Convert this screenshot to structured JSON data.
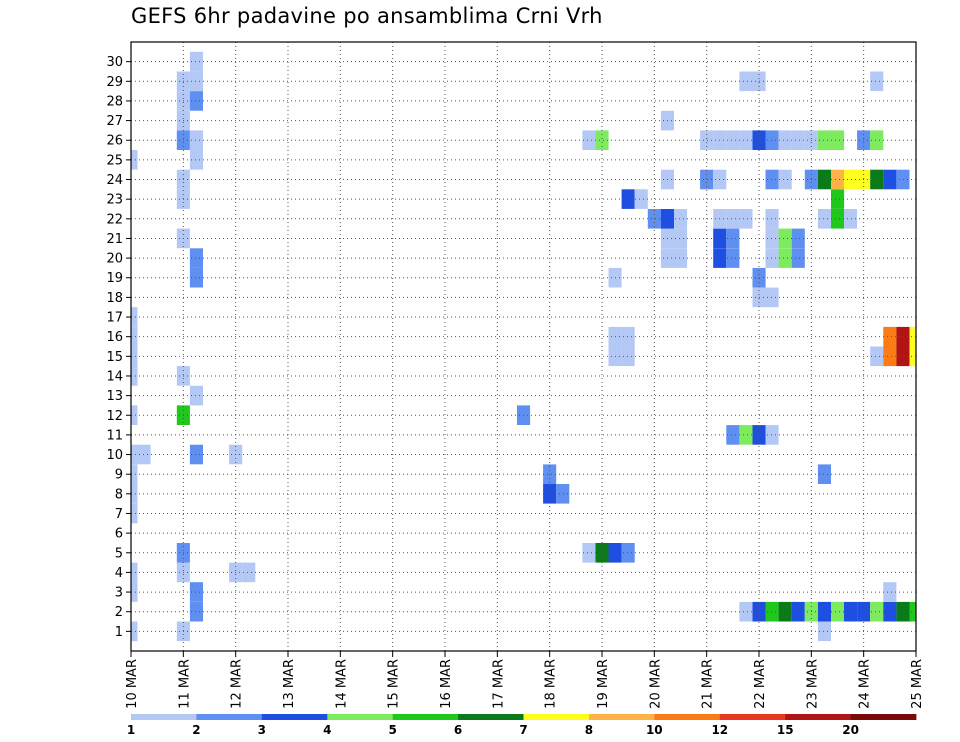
{
  "chart_data": {
    "type": "heatmap",
    "title": "GEFS 6hr padavine po ansamblima Crni Vrh",
    "x_tick_labels": [
      "10 MAR",
      "11 MAR",
      "12 MAR",
      "13 MAR",
      "14 MAR",
      "15 MAR",
      "16 MAR",
      "17 MAR",
      "18 MAR",
      "19 MAR",
      "20 MAR",
      "21 MAR",
      "22 MAR",
      "23 MAR",
      "24 MAR",
      "25 MAR"
    ],
    "x_range_days": [
      10,
      25
    ],
    "time_step_hours": 6,
    "y_tick_labels": [
      "1",
      "2",
      "3",
      "4",
      "5",
      "6",
      "7",
      "8",
      "9",
      "10",
      "11",
      "12",
      "13",
      "14",
      "15",
      "16",
      "17",
      "18",
      "19",
      "20",
      "21",
      "22",
      "23",
      "24",
      "25",
      "26",
      "27",
      "28",
      "29",
      "30"
    ],
    "y_range": [
      0,
      31
    ],
    "grid": true,
    "colorbar": {
      "labels": [
        "1",
        "2",
        "3",
        "4",
        "5",
        "6",
        "7",
        "8",
        "10",
        "12",
        "15",
        "20"
      ],
      "colors": [
        "#b3c8f5",
        "#5f8ff0",
        "#1f4fe0",
        "#7cec5e",
        "#1fc81a",
        "#0b7a18",
        "#ffff1f",
        "#ffb347",
        "#fb7c14",
        "#e8381f",
        "#b01414",
        "#7a0a0a"
      ]
    },
    "cells": [
      [
        1,
        10.0,
        1
      ],
      [
        1,
        11.0,
        1
      ],
      [
        1,
        23.25,
        1
      ],
      [
        2,
        11.25,
        2
      ],
      [
        2,
        21.75,
        1
      ],
      [
        2,
        22.0,
        3
      ],
      [
        2,
        22.25,
        5
      ],
      [
        2,
        22.5,
        6
      ],
      [
        2,
        22.75,
        3
      ],
      [
        2,
        23.0,
        4
      ],
      [
        2,
        23.25,
        3
      ],
      [
        2,
        23.5,
        4
      ],
      [
        2,
        23.75,
        3
      ],
      [
        2,
        24.0,
        3
      ],
      [
        2,
        24.25,
        4
      ],
      [
        2,
        24.5,
        3
      ],
      [
        2,
        24.75,
        6
      ],
      [
        2,
        25.0,
        5
      ],
      [
        3,
        10.0,
        1
      ],
      [
        3,
        11.25,
        2
      ],
      [
        3,
        24.5,
        1
      ],
      [
        4,
        10.0,
        1
      ],
      [
        4,
        11.0,
        1
      ],
      [
        4,
        12.0,
        1
      ],
      [
        4,
        12.25,
        1
      ],
      [
        5,
        11.0,
        2
      ],
      [
        5,
        18.75,
        1
      ],
      [
        5,
        19.0,
        6
      ],
      [
        5,
        19.25,
        3
      ],
      [
        5,
        19.5,
        2
      ],
      [
        7,
        10.0,
        1
      ],
      [
        8,
        10.0,
        1
      ],
      [
        8,
        18.0,
        3
      ],
      [
        8,
        18.25,
        2
      ],
      [
        9,
        10.0,
        1
      ],
      [
        9,
        18.0,
        2
      ],
      [
        9,
        23.25,
        2
      ],
      [
        10,
        10.0,
        1
      ],
      [
        10,
        10.25,
        1
      ],
      [
        10,
        11.25,
        2
      ],
      [
        10,
        12.0,
        1
      ],
      [
        11,
        21.5,
        2
      ],
      [
        11,
        21.75,
        4
      ],
      [
        11,
        22.0,
        3
      ],
      [
        11,
        22.25,
        1
      ],
      [
        12,
        10.0,
        1
      ],
      [
        12,
        11.0,
        5
      ],
      [
        12,
        17.5,
        2
      ],
      [
        13,
        11.25,
        1
      ],
      [
        14,
        10.0,
        1
      ],
      [
        14,
        11.0,
        1
      ],
      [
        15,
        10.0,
        1
      ],
      [
        15,
        19.25,
        1
      ],
      [
        15,
        19.5,
        1
      ],
      [
        15,
        24.25,
        1
      ],
      [
        15,
        24.5,
        9
      ],
      [
        15,
        24.75,
        11
      ],
      [
        15,
        25.0,
        7
      ],
      [
        16,
        10.0,
        1
      ],
      [
        16,
        19.25,
        1
      ],
      [
        16,
        19.5,
        1
      ],
      [
        16,
        24.5,
        9
      ],
      [
        16,
        24.75,
        11
      ],
      [
        16,
        25.0,
        7
      ],
      [
        17,
        10.0,
        1
      ],
      [
        18,
        22.0,
        1
      ],
      [
        18,
        22.25,
        1
      ],
      [
        19,
        11.25,
        2
      ],
      [
        19,
        19.25,
        1
      ],
      [
        19,
        22.0,
        2
      ],
      [
        20,
        11.25,
        2
      ],
      [
        20,
        20.25,
        1
      ],
      [
        20,
        20.5,
        1
      ],
      [
        20,
        21.25,
        3
      ],
      [
        20,
        21.5,
        2
      ],
      [
        20,
        22.25,
        1
      ],
      [
        20,
        22.5,
        4
      ],
      [
        20,
        22.75,
        2
      ],
      [
        21,
        11.0,
        1
      ],
      [
        21,
        20.25,
        1
      ],
      [
        21,
        20.5,
        1
      ],
      [
        21,
        21.25,
        3
      ],
      [
        21,
        21.5,
        2
      ],
      [
        21,
        22.25,
        1
      ],
      [
        21,
        22.5,
        4
      ],
      [
        21,
        22.75,
        2
      ],
      [
        22,
        20.0,
        2
      ],
      [
        22,
        20.25,
        3
      ],
      [
        22,
        20.5,
        1
      ],
      [
        22,
        21.25,
        1
      ],
      [
        22,
        21.5,
        1
      ],
      [
        22,
        21.75,
        1
      ],
      [
        22,
        22.25,
        1
      ],
      [
        22,
        23.25,
        1
      ],
      [
        22,
        23.5,
        5
      ],
      [
        22,
        23.75,
        1
      ],
      [
        23,
        11.0,
        1
      ],
      [
        23,
        19.5,
        3
      ],
      [
        23,
        19.75,
        1
      ],
      [
        23,
        23.5,
        5
      ],
      [
        24,
        11.0,
        1
      ],
      [
        24,
        20.25,
        1
      ],
      [
        24,
        21.0,
        2
      ],
      [
        24,
        21.25,
        1
      ],
      [
        24,
        22.25,
        2
      ],
      [
        24,
        22.5,
        1
      ],
      [
        24,
        23.0,
        2
      ],
      [
        24,
        23.25,
        6
      ],
      [
        24,
        23.5,
        8
      ],
      [
        24,
        23.75,
        7
      ],
      [
        24,
        24.0,
        7
      ],
      [
        24,
        24.25,
        6
      ],
      [
        24,
        24.5,
        3
      ],
      [
        24,
        24.75,
        2
      ],
      [
        25,
        10.0,
        1
      ],
      [
        25,
        11.25,
        1
      ],
      [
        26,
        11.0,
        2
      ],
      [
        26,
        11.25,
        1
      ],
      [
        26,
        18.75,
        1
      ],
      [
        26,
        19.0,
        4
      ],
      [
        26,
        21.0,
        1
      ],
      [
        26,
        21.25,
        1
      ],
      [
        26,
        21.5,
        1
      ],
      [
        26,
        21.75,
        1
      ],
      [
        26,
        22.0,
        3
      ],
      [
        26,
        22.25,
        2
      ],
      [
        26,
        22.5,
        1
      ],
      [
        26,
        22.75,
        1
      ],
      [
        26,
        23.0,
        1
      ],
      [
        26,
        23.25,
        4
      ],
      [
        26,
        23.5,
        4
      ],
      [
        26,
        24.0,
        2
      ],
      [
        26,
        24.25,
        4
      ],
      [
        27,
        11.0,
        1
      ],
      [
        27,
        20.25,
        1
      ],
      [
        28,
        11.0,
        1
      ],
      [
        28,
        11.25,
        2
      ],
      [
        29,
        11.0,
        1
      ],
      [
        29,
        11.25,
        1
      ],
      [
        29,
        21.75,
        1
      ],
      [
        29,
        22.0,
        1
      ],
      [
        29,
        24.25,
        1
      ],
      [
        30,
        11.25,
        1
      ]
    ]
  }
}
